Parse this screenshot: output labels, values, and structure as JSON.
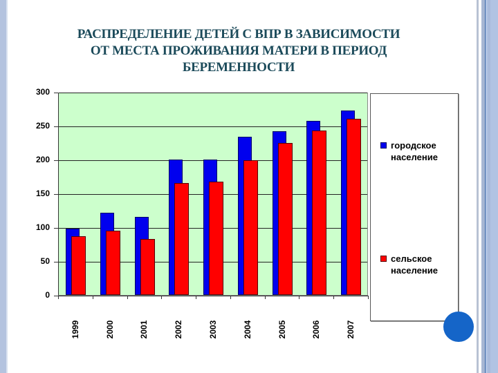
{
  "title": {
    "line1": "РАСПРЕДЕЛЕНИЕ ДЕТЕЙ С ВПР В ЗАВИСИМОСТИ",
    "line2": "ОТ МЕСТА ПРОЖИВАНИЯ МАТЕРИ В ПЕРИОД",
    "line3": "БЕРЕМЕННОСТИ"
  },
  "colors": {
    "urban": "#0000ee",
    "rural": "#ff0000",
    "plot_background": "#ccffcc",
    "title": "#1b4a5a",
    "decor_circle": "#1565c8"
  },
  "legend": {
    "items": [
      {
        "line1": "городское",
        "line2": "население",
        "color": "#0000ee"
      },
      {
        "line1": "сельское",
        "line2": "население",
        "color": "#ff0000"
      }
    ]
  },
  "chart_data": {
    "type": "bar",
    "title": "РАСПРЕДЕЛЕНИЕ ДЕТЕЙ С ВПР В ЗАВИСИМОСТИ ОТ МЕСТА ПРОЖИВАНИЯ МАТЕРИ В ПЕРИОД БЕРЕМЕННОСТИ",
    "xlabel": "",
    "ylabel": "",
    "categories": [
      "1999",
      "2000",
      "2001",
      "2002",
      "2003",
      "2004",
      "2005",
      "2006",
      "2007"
    ],
    "series": [
      {
        "name": "городское население",
        "color": "#0000ee",
        "values": [
          98,
          121,
          115,
          200,
          200,
          234,
          242,
          257,
          272
        ]
      },
      {
        "name": "сельское население",
        "color": "#ff0000",
        "values": [
          87,
          95,
          83,
          165,
          167,
          199,
          225,
          243,
          260
        ]
      }
    ],
    "yticks": [
      0,
      50,
      100,
      150,
      200,
      250,
      300
    ],
    "ylim": [
      0,
      300
    ],
    "grid": true,
    "legend_position": "right",
    "xtick_rotation": -90
  }
}
